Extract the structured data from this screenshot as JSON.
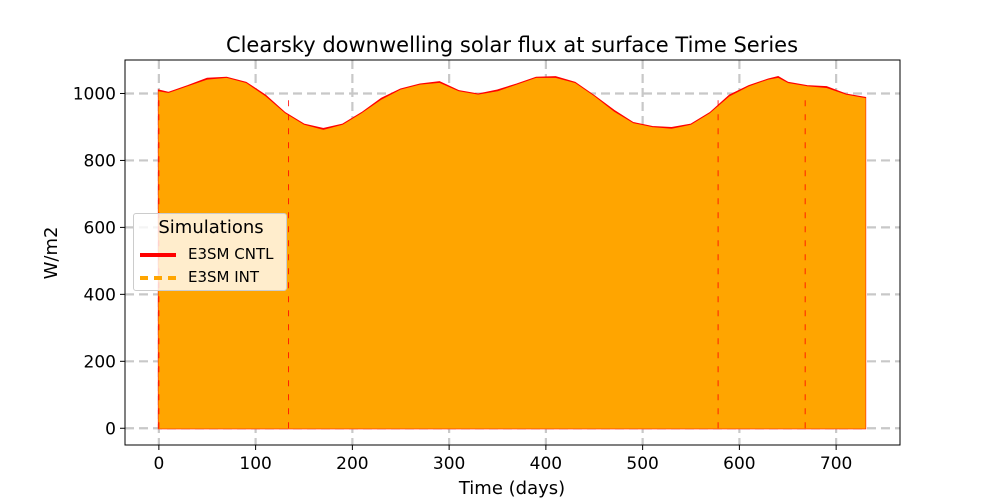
{
  "chart_data": {
    "type": "line",
    "title": "Clearsky downwelling solar flux at surface Time Series",
    "xlabel": "Time (days)",
    "ylabel": "W/m2",
    "xlim": [
      -35,
      766
    ],
    "ylim": [
      -50,
      1100
    ],
    "xticks": [
      0,
      100,
      200,
      300,
      400,
      500,
      600,
      700
    ],
    "yticks": [
      0,
      200,
      400,
      600,
      800,
      1000
    ],
    "grid": true,
    "legend": {
      "title": "Simulations",
      "position": "center-left"
    },
    "x_range": [
      0,
      730
    ],
    "envelope_max": {
      "x": [
        0,
        10,
        30,
        50,
        70,
        90,
        110,
        130,
        150,
        170,
        190,
        210,
        230,
        250,
        270,
        290,
        310,
        330,
        350,
        370,
        390,
        410,
        430,
        450,
        470,
        490,
        510,
        530,
        550,
        570,
        590,
        610,
        630,
        640,
        650,
        670,
        690,
        710,
        730
      ],
      "y": [
        1005,
        1000,
        1020,
        1040,
        1045,
        1030,
        990,
        940,
        905,
        890,
        905,
        940,
        980,
        1010,
        1025,
        1030,
        1005,
        995,
        1005,
        1025,
        1045,
        1045,
        1030,
        990,
        945,
        910,
        898,
        893,
        905,
        940,
        990,
        1020,
        1040,
        1045,
        1030,
        1020,
        1015,
        995,
        985
      ]
    },
    "series": [
      {
        "name": "E3SM CNTL",
        "color": "#ff0000",
        "style": "solid",
        "min": 0
      },
      {
        "name": "E3SM INT",
        "color": "#ffa500",
        "style": "dashed",
        "min": 0
      }
    ]
  }
}
